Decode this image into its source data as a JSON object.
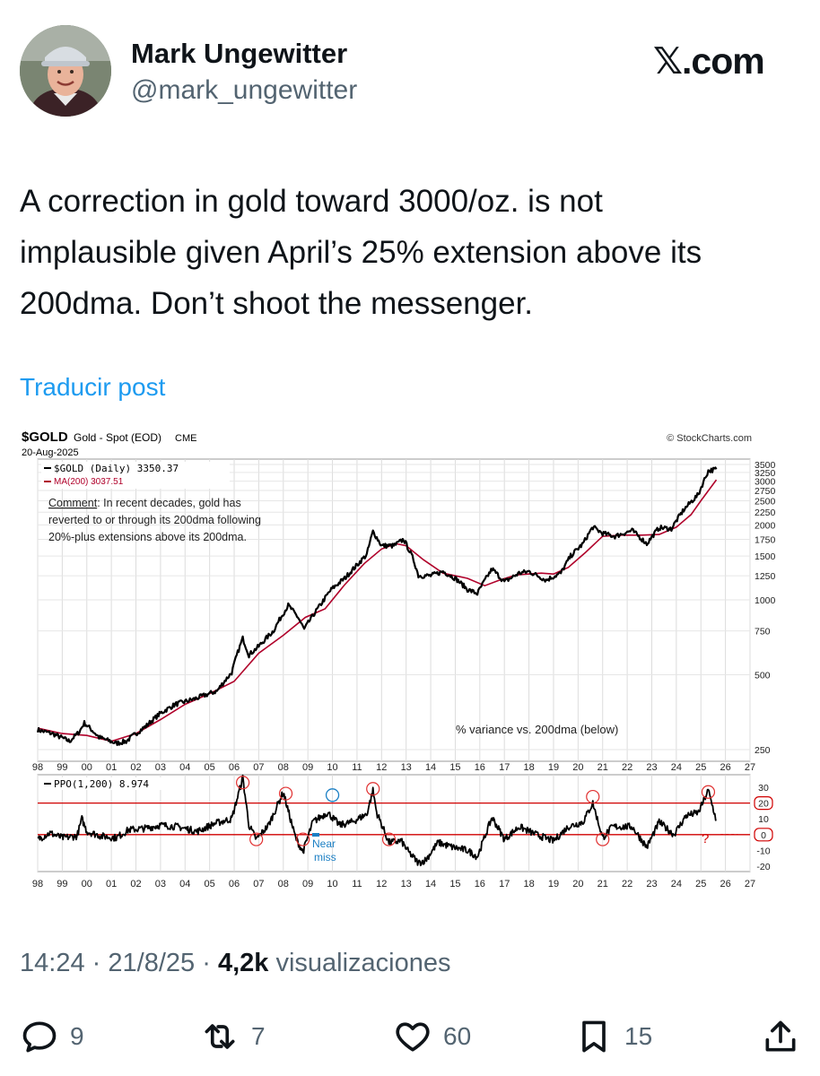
{
  "author": {
    "name": "Mark Ungewitter",
    "handle": "@mark_ungewitter"
  },
  "brand": "𝕏.com",
  "post": {
    "lines": [
      "A correction in gold toward 3000/oz. is not",
      "implausible given April’s 25% extension above its",
      "200dma. Don’t shoot the messenger."
    ]
  },
  "translate_label": "Traducir post",
  "meta": {
    "time": "14:24",
    "date": "21/8/25",
    "views": "4,2k",
    "views_label": "visualizaciones",
    "separator": "·"
  },
  "actions": {
    "replies": "9",
    "reposts": "7",
    "likes": "60",
    "bookmarks": "15"
  },
  "icons": [
    "reply-icon",
    "repost-icon",
    "like-icon",
    "bookmark-icon",
    "share-icon"
  ],
  "colors": {
    "link": "#1d9bf0",
    "secondary": "#536471",
    "ma_line": "#b0002a",
    "ppo_levels": "#d00000",
    "near_miss": "#1b7fc4"
  },
  "chart_data": [
    {
      "type": "line",
      "symbol": "$GOLD",
      "title": "Gold - Spot (EOD)",
      "exchange": "CME",
      "date": "20-Aug-2025",
      "source": "© StockCharts.com",
      "legend": [
        "$GOLD (Daily) 3350.37",
        "MA(200) 3037.51"
      ],
      "comment_label": "Comment",
      "comment_lines": [
        ": In recent decades, gold has",
        "reverted to or through its 200dma following",
        "20%-plus extensions above its 200dma."
      ],
      "annotation": "% variance vs. 200dma (below)",
      "y_scale": "log",
      "y_ticks": [
        250,
        500,
        750,
        1000,
        1250,
        1500,
        1750,
        2000,
        2250,
        2500,
        2750,
        3000,
        3250,
        3500
      ],
      "x_tick_labels": [
        "98",
        "99",
        "00",
        "01",
        "02",
        "03",
        "04",
        "05",
        "06",
        "07",
        "08",
        "09",
        "10",
        "11",
        "12",
        "13",
        "14",
        "15",
        "16",
        "17",
        "18",
        "19",
        "20",
        "21",
        "22",
        "23",
        "24",
        "25",
        "26",
        "27"
      ],
      "x_range": [
        1998,
        2027
      ],
      "series": [
        {
          "name": "$GOLD (Daily)",
          "x": [
            1998.0,
            1998.6,
            1999.3,
            1999.7,
            1999.9,
            2000.5,
            2001.2,
            2001.6,
            2002.4,
            2003.0,
            2003.6,
            2004.4,
            2005.3,
            2005.9,
            2006.35,
            2006.6,
            2007.0,
            2007.6,
            2008.2,
            2008.6,
            2008.85,
            2009.5,
            2009.95,
            2010.5,
            2011.0,
            2011.4,
            2011.65,
            2012.0,
            2012.5,
            2012.9,
            2013.3,
            2013.5,
            2014.0,
            2014.5,
            2015.0,
            2015.5,
            2015.9,
            2016.5,
            2017.0,
            2017.6,
            2018.0,
            2018.7,
            2019.3,
            2019.7,
            2020.2,
            2020.6,
            2021.0,
            2021.5,
            2022.2,
            2022.8,
            2023.3,
            2023.8,
            2024.3,
            2024.9,
            2025.3,
            2025.63
          ],
          "values": [
            300,
            290,
            270,
            295,
            320,
            280,
            265,
            270,
            310,
            350,
            380,
            400,
            430,
            510,
            700,
            600,
            650,
            750,
            950,
            850,
            760,
            950,
            1100,
            1220,
            1380,
            1520,
            1880,
            1650,
            1650,
            1750,
            1450,
            1250,
            1250,
            1300,
            1220,
            1100,
            1060,
            1330,
            1180,
            1280,
            1300,
            1200,
            1280,
            1500,
            1680,
            1960,
            1850,
            1800,
            1900,
            1680,
            1950,
            1930,
            2300,
            2650,
            3300,
            3350
          ]
        },
        {
          "name": "MA(200)",
          "x": [
            1998.0,
            1999.0,
            2000.0,
            2001.0,
            2002.0,
            2003.0,
            2004.0,
            2005.0,
            2006.0,
            2007.0,
            2008.0,
            2008.9,
            2009.7,
            2010.5,
            2011.3,
            2012.0,
            2012.6,
            2013.0,
            2013.7,
            2014.5,
            2015.5,
            2016.2,
            2016.8,
            2017.5,
            2018.5,
            2019.0,
            2019.6,
            2020.3,
            2021.0,
            2021.8,
            2022.6,
            2023.3,
            2024.0,
            2024.6,
            2025.0,
            2025.63
          ],
          "values": [
            305,
            290,
            285,
            270,
            290,
            330,
            380,
            420,
            470,
            610,
            720,
            850,
            920,
            1150,
            1400,
            1600,
            1680,
            1650,
            1450,
            1280,
            1220,
            1140,
            1200,
            1260,
            1280,
            1270,
            1350,
            1550,
            1800,
            1820,
            1820,
            1830,
            1960,
            2200,
            2500,
            3037.51
          ]
        }
      ]
    },
    {
      "type": "line",
      "title": "PPO(1,200) 8.974",
      "y_ticks": [
        30,
        20,
        10,
        0,
        -10,
        -20
      ],
      "reference_lines": [
        20,
        0
      ],
      "highlighted_ticks": [
        20,
        0
      ],
      "annotations": [
        "Near",
        "miss",
        "?"
      ],
      "x_tick_labels": [
        "98",
        "99",
        "00",
        "01",
        "02",
        "03",
        "04",
        "05",
        "06",
        "07",
        "08",
        "09",
        "10",
        "11",
        "12",
        "13",
        "14",
        "15",
        "16",
        "17",
        "18",
        "19",
        "20",
        "21",
        "22",
        "23",
        "24",
        "25",
        "26",
        "27"
      ],
      "x_range": [
        1998,
        2027
      ],
      "series": [
        {
          "name": "PPO(1,200)",
          "x": [
            1998.0,
            1998.5,
            1999.0,
            1999.6,
            1999.8,
            2000.0,
            2000.6,
            2001.2,
            2001.7,
            2002.4,
            2003.0,
            2003.7,
            2004.5,
            2005.2,
            2005.9,
            2006.35,
            2006.6,
            2006.9,
            2007.4,
            2008.0,
            2008.2,
            2008.5,
            2008.8,
            2009.2,
            2009.8,
            2010.3,
            2010.8,
            2011.4,
            2011.65,
            2011.8,
            2012.3,
            2012.8,
            2013.1,
            2013.5,
            2013.8,
            2014.3,
            2014.9,
            2015.5,
            2015.9,
            2016.5,
            2017.0,
            2017.6,
            2018.3,
            2019.0,
            2019.6,
            2020.2,
            2020.6,
            2021.0,
            2021.4,
            2022.2,
            2022.8,
            2023.3,
            2023.9,
            2024.4,
            2024.9,
            2025.3,
            2025.63
          ],
          "values": [
            -3,
            1,
            -2,
            -1,
            10,
            2,
            -1,
            -2,
            3,
            4,
            6,
            5,
            2,
            7,
            10,
            36,
            6,
            -3,
            6,
            27,
            15,
            -2,
            -11,
            8,
            14,
            6,
            8,
            13,
            28,
            14,
            -5,
            -4,
            -11,
            -18,
            -16,
            -5,
            -8,
            -10,
            -14,
            11,
            -3,
            5,
            0,
            -4,
            5,
            8,
            20,
            -2,
            5,
            5,
            -8,
            8,
            0,
            12,
            14,
            28,
            8.974
          ]
        }
      ]
    }
  ]
}
